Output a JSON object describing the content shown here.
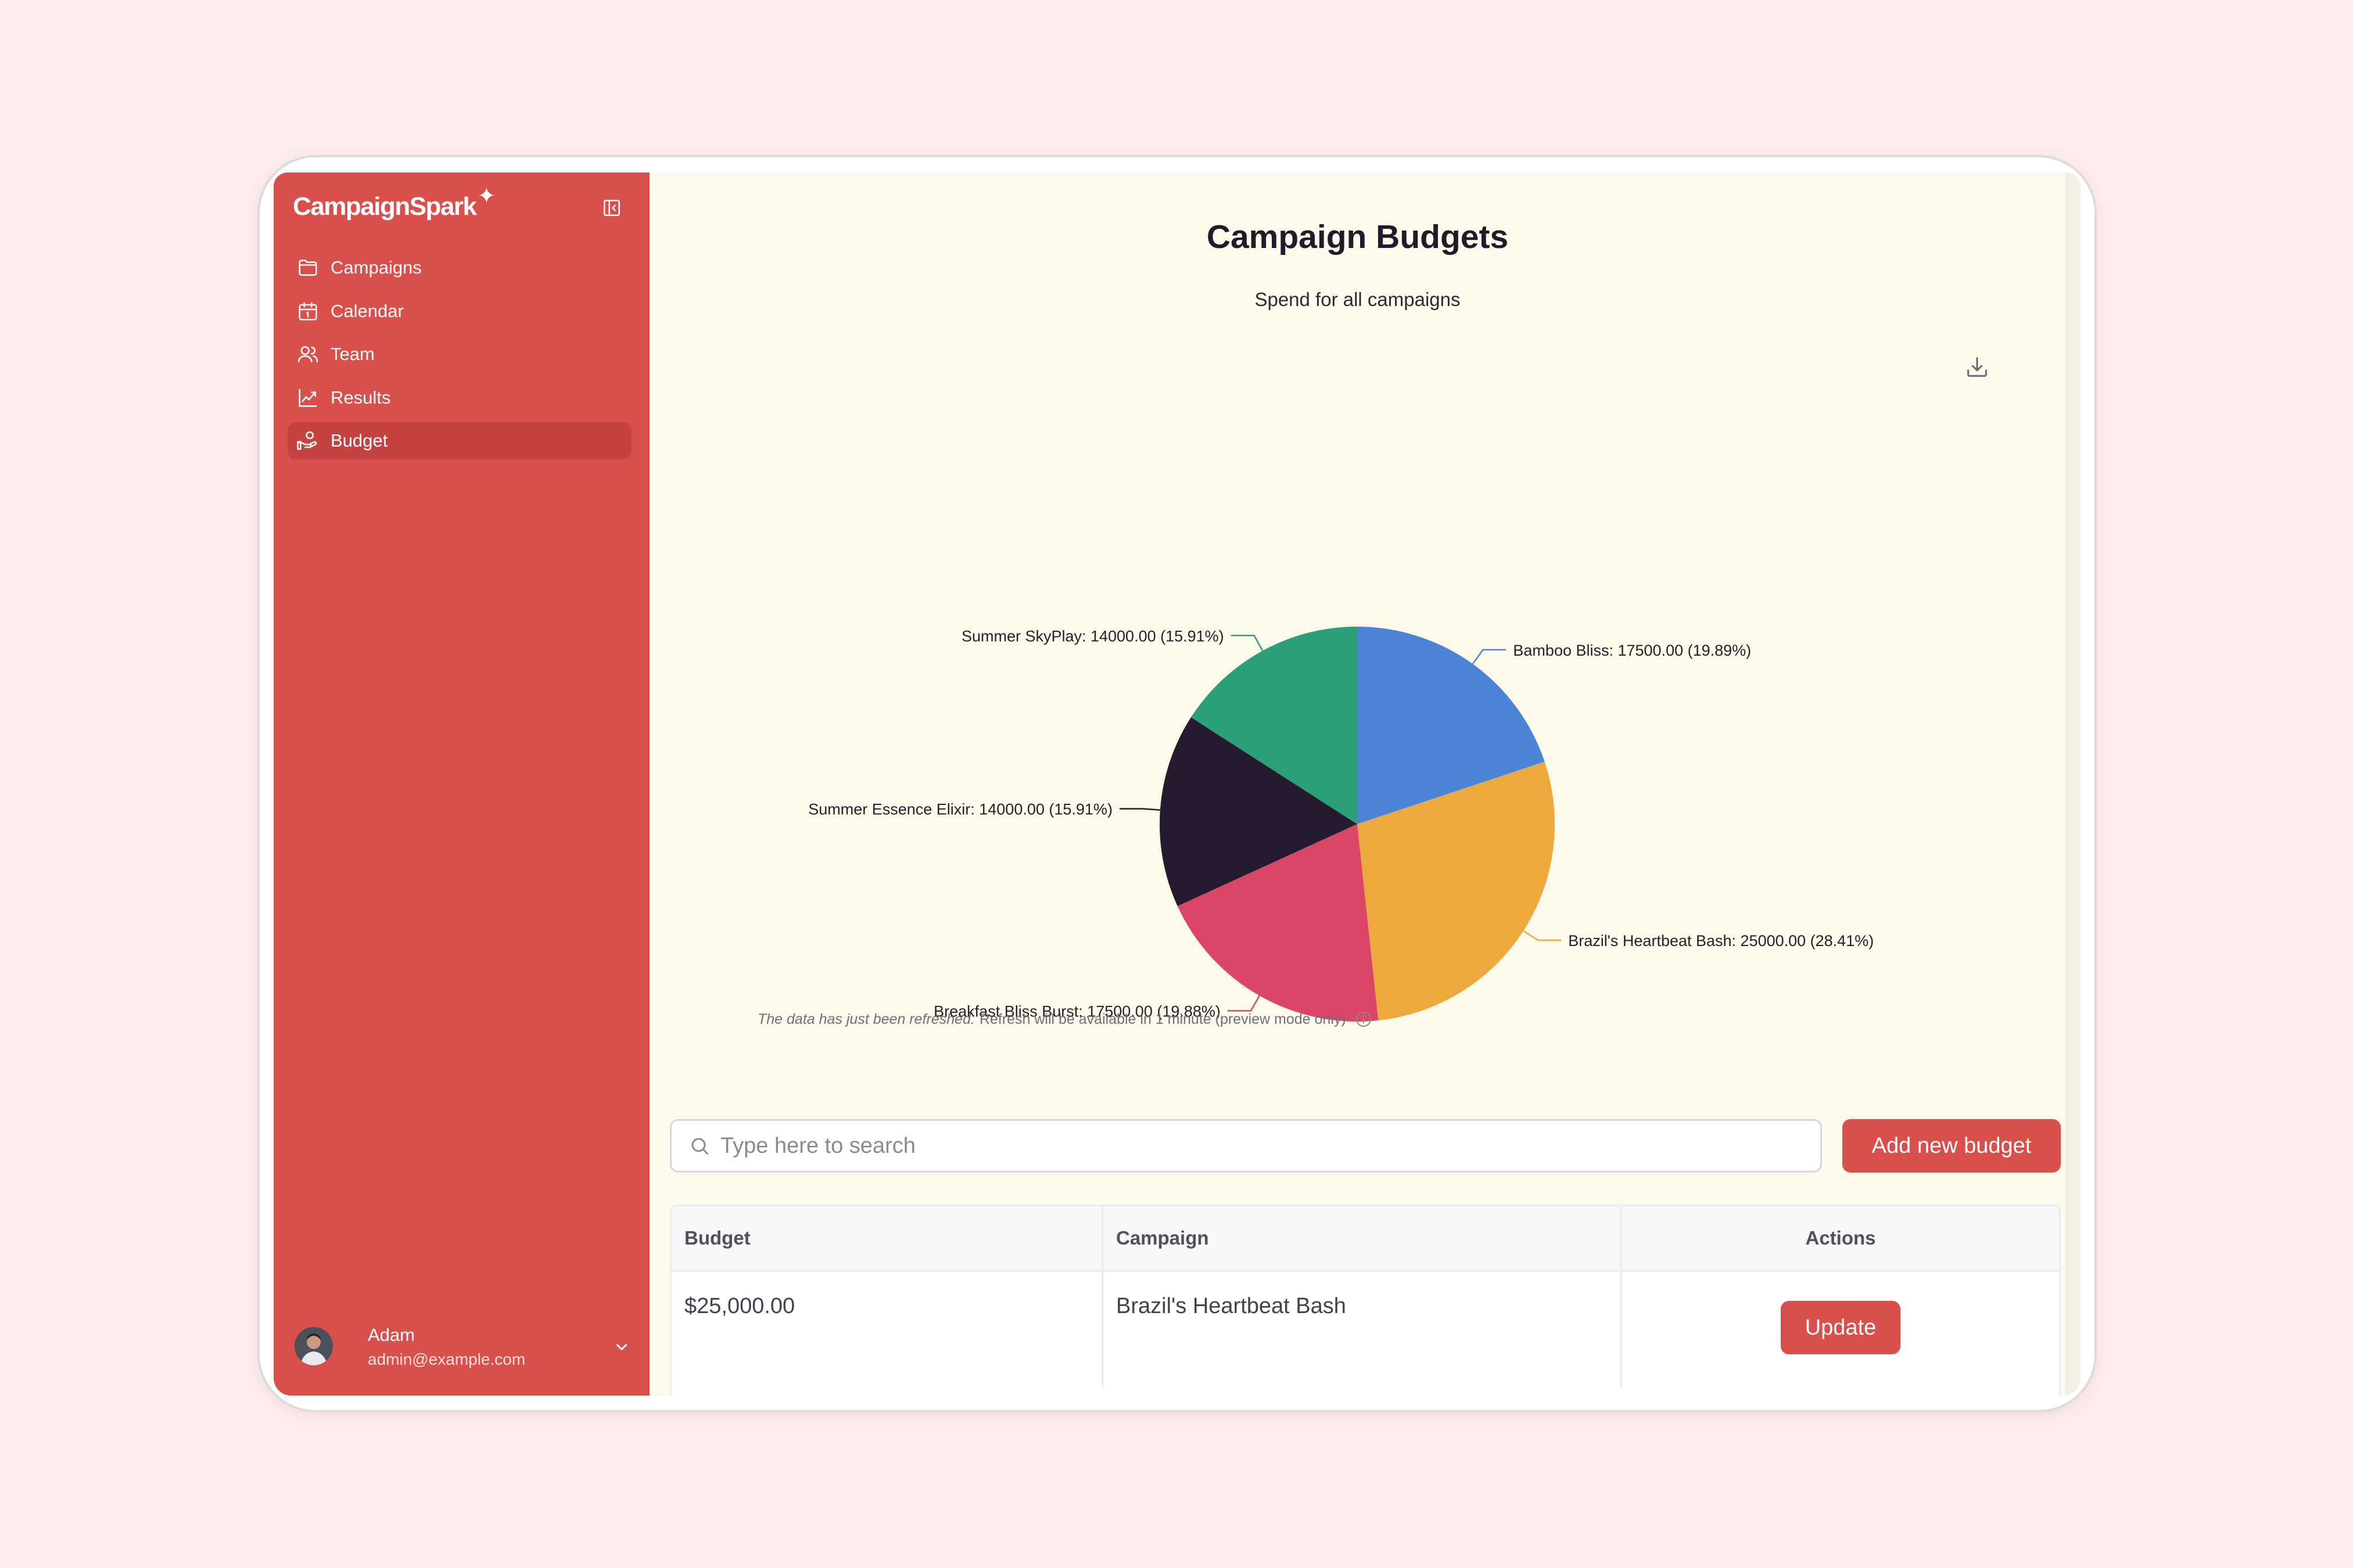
{
  "app": {
    "brand": "CampaignSpark",
    "brand_mark": "✦"
  },
  "sidebar": {
    "items": [
      {
        "label": "Campaigns",
        "icon": "folder-icon",
        "active": false
      },
      {
        "label": "Calendar",
        "icon": "calendar-icon",
        "active": false
      },
      {
        "label": "Team",
        "icon": "users-icon",
        "active": false
      },
      {
        "label": "Results",
        "icon": "chart-line-icon",
        "active": false
      },
      {
        "label": "Budget",
        "icon": "budget-icon",
        "active": true
      }
    ],
    "user": {
      "name": "Adam",
      "email": "admin@example.com"
    }
  },
  "main": {
    "title": "Campaign Budgets",
    "subtitle": "Spend for all campaigns",
    "refresh_note_italic": "The data has just been refreshed.",
    "refresh_note": "Refresh will be available in 1 minute (preview mode only)",
    "search": {
      "placeholder": "Type here to search",
      "value": ""
    },
    "add_button": "Add new budget",
    "table": {
      "headers": [
        "Budget",
        "Campaign",
        "Actions"
      ],
      "rows": [
        {
          "budget": "$25,000.00",
          "campaign": "Brazil's Heartbeat Bash",
          "action": "Update"
        }
      ]
    }
  },
  "chart_data": {
    "type": "pie",
    "slices": [
      {
        "name": "Bamboo Bliss",
        "value": 17500.0,
        "percent": 19.89,
        "label": "Bamboo Bliss: 17500.00 (19.89%)",
        "color": "#4c84d8"
      },
      {
        "name": "Brazil's Heartbeat Bash",
        "value": 25000.0,
        "percent": 28.41,
        "label": "Brazil's Heartbeat Bash: 25000.00 (28.41%)",
        "color": "#eda83e"
      },
      {
        "name": "Breakfast Bliss Burst",
        "value": 17500.0,
        "percent": 19.88,
        "label": "Breakfast Bliss Burst: 17500.00 (19.88%)",
        "color": "#db4666"
      },
      {
        "name": "Summer Essence Elixir",
        "value": 14000.0,
        "percent": 15.91,
        "label": "Summer Essence Elixir: 14000.00 (15.91%)",
        "color": "#261a2e"
      },
      {
        "name": "Summer SkyPlay",
        "value": 14000.0,
        "percent": 15.91,
        "label": "Summer SkyPlay: 14000.00 (15.91%)",
        "color": "#2aa07a"
      }
    ]
  },
  "colors": {
    "accent": "#d94f4c",
    "accent_active": "#c44240",
    "main_background": "#fefaeb",
    "page_background": "#fdeceb"
  }
}
